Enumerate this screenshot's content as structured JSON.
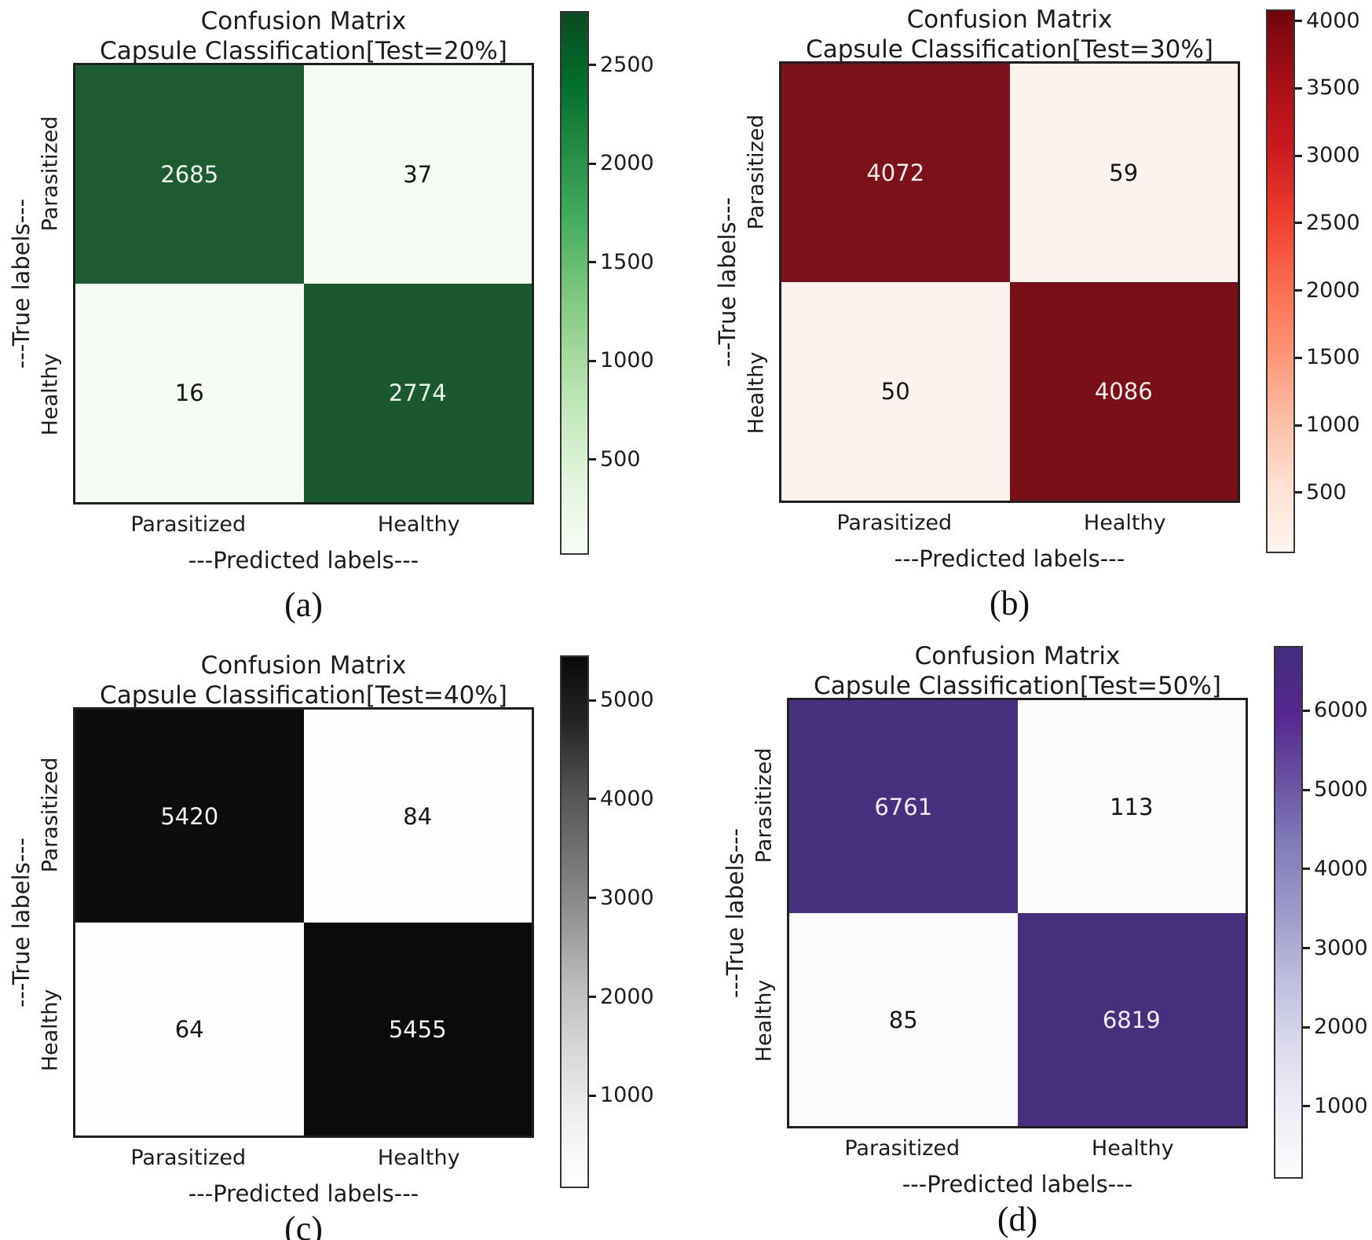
{
  "figure": {
    "background": "#ffffff",
    "description": "Confusion matrices for capsule classification at four test splits"
  },
  "chart_data": [
    {
      "type": "heatmap",
      "panel_letter": "a",
      "caption": "(a)",
      "title": "Confusion Matrix",
      "subtitle": "Capsule Classification[Test=20%]",
      "xlabel": "---Predicted labels---",
      "ylabel": "---True labels---",
      "x_tick_labels": [
        "Parasitized",
        "Healthy"
      ],
      "y_tick_labels": [
        "Parasitized",
        "Healthy"
      ],
      "values": [
        [
          2685,
          37
        ],
        [
          16,
          2774
        ]
      ],
      "vmin": 16,
      "vmax": 2774,
      "colorbar_ticks": [
        500,
        1000,
        1500,
        2000,
        2500
      ],
      "colormap_name": "Greens",
      "cell_colors": [
        [
          "#1d5c33",
          "#f5faf3"
        ],
        [
          "#f5faf3",
          "#1a5830"
        ]
      ],
      "text_on_dark": "#edf4eb",
      "text_on_light": "#161616",
      "gradient": [
        "#f7fcf5",
        "#e5f5e0",
        "#c7e9c0",
        "#a1d99b",
        "#74c476",
        "#41ab5d",
        "#238b45",
        "#006d2c",
        "#0c4a23"
      ]
    },
    {
      "type": "heatmap",
      "panel_letter": "b",
      "caption": "(b)",
      "title": "Confusion Matrix",
      "subtitle": "Capsule Classification[Test=30%]",
      "xlabel": "---Predicted labels---",
      "ylabel": "---True labels---",
      "x_tick_labels": [
        "Parasitized",
        "Healthy"
      ],
      "y_tick_labels": [
        "Parasitized",
        "Healthy"
      ],
      "values": [
        [
          4072,
          59
        ],
        [
          50,
          4086
        ]
      ],
      "vmin": 50,
      "vmax": 4086,
      "colorbar_ticks": [
        500,
        1000,
        1500,
        2000,
        2500,
        3000,
        3500,
        4000
      ],
      "colormap_name": "Reds",
      "cell_colors": [
        [
          "#7b111b",
          "#fdf3ee"
        ],
        [
          "#fdf3ee",
          "#790f19"
        ]
      ],
      "text_on_dark": "#f7ebe7",
      "text_on_light": "#161616",
      "gradient": [
        "#fff5f0",
        "#fee0d2",
        "#fcbba1",
        "#fc9272",
        "#fb6a4a",
        "#ef3b2c",
        "#cb181d",
        "#a50f15",
        "#70050f"
      ]
    },
    {
      "type": "heatmap",
      "panel_letter": "c",
      "caption": "(c)",
      "title": "Confusion Matrix",
      "subtitle": "Capsule Classification[Test=40%]",
      "xlabel": "---Predicted labels---",
      "ylabel": "---True labels---",
      "x_tick_labels": [
        "Parasitized",
        "Healthy"
      ],
      "y_tick_labels": [
        "Parasitized",
        "Healthy"
      ],
      "values": [
        [
          5420,
          84
        ],
        [
          64,
          5455
        ]
      ],
      "vmin": 64,
      "vmax": 5455,
      "colorbar_ticks": [
        1000,
        2000,
        3000,
        4000,
        5000
      ],
      "colormap_name": "Greys",
      "cell_colors": [
        [
          "#0d0d0b",
          "#fefefe"
        ],
        [
          "#fefefe",
          "#0b0b09"
        ]
      ],
      "text_on_dark": "#f2f2f0",
      "text_on_light": "#161616",
      "gradient": [
        "#ffffff",
        "#f0f0f0",
        "#d9d9d9",
        "#bdbdbd",
        "#969696",
        "#737373",
        "#525252",
        "#252525",
        "#0a0a0a"
      ]
    },
    {
      "type": "heatmap",
      "panel_letter": "d",
      "caption": "(d)",
      "title": "Confusion Matrix",
      "subtitle": "Capsule Classification[Test=50%]",
      "xlabel": "---Predicted labels---",
      "ylabel": "---True labels---",
      "x_tick_labels": [
        "Parasitized",
        "Healthy"
      ],
      "y_tick_labels": [
        "Parasitized",
        "Healthy"
      ],
      "values": [
        [
          6761,
          113
        ],
        [
          85,
          6819
        ]
      ],
      "vmin": 85,
      "vmax": 6819,
      "colorbar_ticks": [
        1000,
        2000,
        3000,
        4000,
        5000,
        6000
      ],
      "colormap_name": "Purples",
      "cell_colors": [
        [
          "#483080",
          "#fbfafd"
        ],
        [
          "#fbfafd",
          "#46307e"
        ]
      ],
      "text_on_dark": "#efecf6",
      "text_on_light": "#161616",
      "gradient": [
        "#fcfbfd",
        "#efedf5",
        "#dadaeb",
        "#bcbddc",
        "#9e9ac8",
        "#807dba",
        "#6a51a3",
        "#54278f",
        "#432c80"
      ]
    }
  ]
}
